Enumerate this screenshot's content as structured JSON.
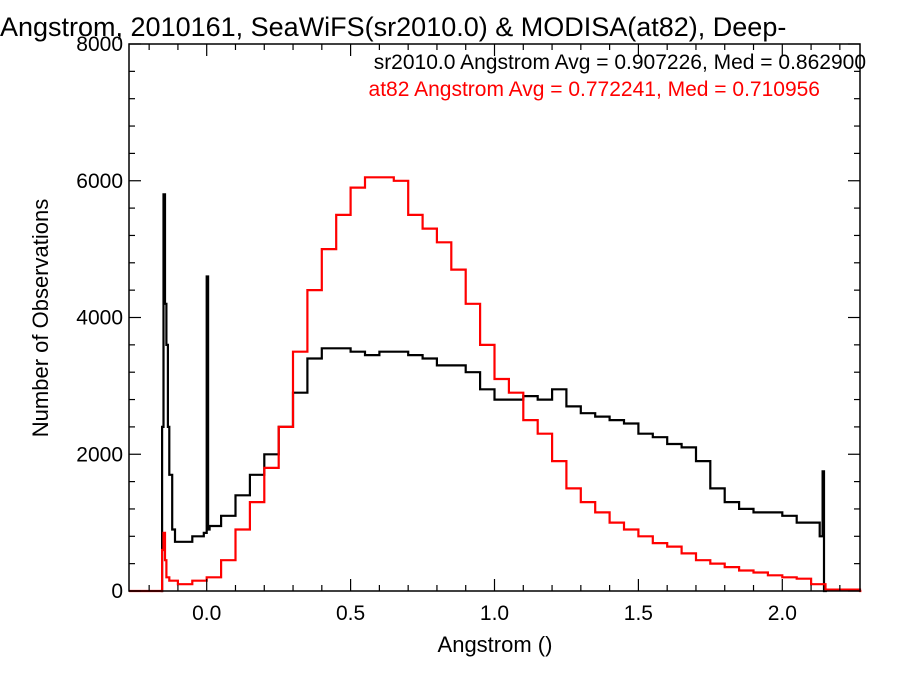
{
  "chart_data": {
    "type": "line",
    "step": true,
    "title": "Angstrom, 2010161, SeaWiFS(sr2010.0) & MODISA(at82), Deep-",
    "xlabel": "Angstrom ()",
    "ylabel": "Number of Observations",
    "xlim": [
      -0.27,
      2.27
    ],
    "ylim": [
      0,
      8000
    ],
    "x_ticks": [
      0.0,
      0.5,
      1.0,
      1.5,
      2.0
    ],
    "x_tick_labels": [
      "0.0",
      "0.5",
      "1.0",
      "1.5",
      "2.0"
    ],
    "y_ticks": [
      0,
      2000,
      4000,
      6000,
      8000
    ],
    "y_tick_labels": [
      "0",
      "2000",
      "4000",
      "6000",
      "8000"
    ],
    "grid": false,
    "legend_position": "top-right",
    "annotations": [
      {
        "text": "sr2010.0 Angstrom Avg = 0.907226, Med = 0.862900",
        "color": "#000000"
      },
      {
        "text": "at82 Angstrom Avg = 0.772241, Med = 0.710956",
        "color": "#ff0000"
      }
    ],
    "series": [
      {
        "color": "#000000",
        "x": [
          -0.16,
          -0.155,
          -0.15,
          -0.145,
          -0.14,
          -0.135,
          -0.13,
          -0.12,
          -0.11,
          -0.1,
          -0.05,
          -0.01,
          0.0,
          0.005,
          0.01,
          0.05,
          0.1,
          0.15,
          0.2,
          0.25,
          0.3,
          0.35,
          0.4,
          0.45,
          0.5,
          0.55,
          0.6,
          0.65,
          0.7,
          0.75,
          0.8,
          0.85,
          0.9,
          0.95,
          1.0,
          1.05,
          1.1,
          1.15,
          1.2,
          1.25,
          1.3,
          1.35,
          1.4,
          1.45,
          1.5,
          1.55,
          1.6,
          1.65,
          1.7,
          1.75,
          1.8,
          1.85,
          1.9,
          1.95,
          2.0,
          2.05,
          2.1,
          2.13,
          2.14,
          2.145,
          2.15
        ],
        "y": [
          0,
          2400,
          5800,
          4200,
          3600,
          2400,
          1700,
          900,
          720,
          720,
          800,
          850,
          4600,
          900,
          950,
          1100,
          1400,
          1700,
          2000,
          2400,
          2900,
          3400,
          3550,
          3550,
          3500,
          3450,
          3500,
          3500,
          3450,
          3400,
          3300,
          3300,
          3200,
          2950,
          2800,
          2800,
          2850,
          2800,
          2950,
          2700,
          2600,
          2550,
          2500,
          2450,
          2300,
          2250,
          2150,
          2100,
          1900,
          1500,
          1300,
          1200,
          1150,
          1150,
          1100,
          1000,
          1000,
          800,
          1750,
          0,
          0
        ]
      },
      {
        "color": "#ff0000",
        "x": [
          -0.27,
          -0.16,
          -0.155,
          -0.15,
          -0.145,
          -0.14,
          -0.13,
          -0.1,
          -0.05,
          0.0,
          0.05,
          0.1,
          0.15,
          0.2,
          0.25,
          0.3,
          0.35,
          0.4,
          0.45,
          0.5,
          0.55,
          0.6,
          0.65,
          0.7,
          0.75,
          0.8,
          0.85,
          0.9,
          0.95,
          1.0,
          1.05,
          1.1,
          1.15,
          1.2,
          1.25,
          1.3,
          1.35,
          1.4,
          1.45,
          1.5,
          1.55,
          1.6,
          1.65,
          1.7,
          1.75,
          1.8,
          1.85,
          1.9,
          1.95,
          2.0,
          2.05,
          2.1,
          2.15,
          2.27
        ],
        "y": [
          0,
          0,
          600,
          850,
          450,
          200,
          150,
          100,
          150,
          200,
          450,
          900,
          1300,
          1800,
          2400,
          3500,
          4400,
          5000,
          5500,
          5900,
          6050,
          6050,
          6000,
          5500,
          5300,
          5100,
          4700,
          4200,
          3600,
          3100,
          2900,
          2500,
          2300,
          1900,
          1500,
          1300,
          1150,
          1000,
          900,
          800,
          700,
          650,
          550,
          450,
          400,
          350,
          300,
          270,
          230,
          200,
          180,
          100,
          20,
          0
        ]
      }
    ]
  }
}
